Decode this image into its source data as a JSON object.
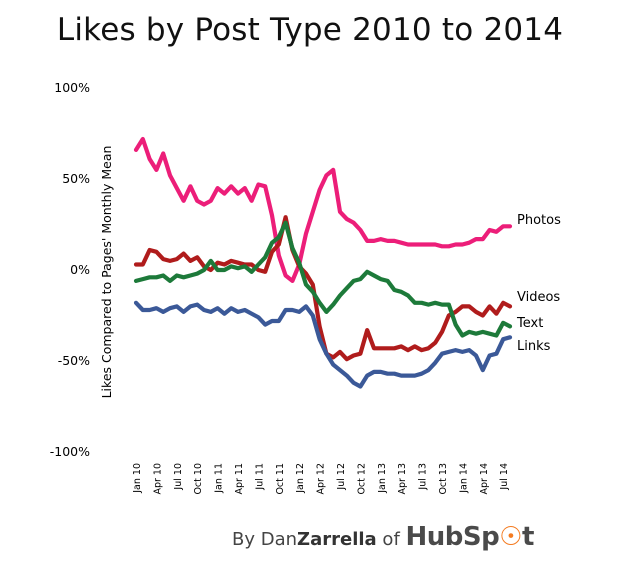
{
  "chart_data": {
    "type": "line",
    "title": "Likes by Post Type 2010 to 2014",
    "xlabel": "",
    "ylabel": "Likes Compared to Pages' Monthly Mean",
    "ylim": [
      -100,
      100
    ],
    "y_ticks": [
      100,
      50,
      0,
      -50,
      -100
    ],
    "y_tick_labels": [
      "100%",
      "50%",
      "0%",
      "-50%",
      "-100%"
    ],
    "categories": [
      "Jan 10",
      "Feb 10",
      "Mar 10",
      "Apr 10",
      "May 10",
      "Jun 10",
      "Jul 10",
      "Aug 10",
      "Sep 10",
      "Oct 10",
      "Nov 10",
      "Dec 10",
      "Jan 11",
      "Feb 11",
      "Mar 11",
      "Apr 11",
      "May 11",
      "Jun 11",
      "Jul 11",
      "Aug 11",
      "Sep 11",
      "Oct 11",
      "Nov 11",
      "Dec 11",
      "Jan 12",
      "Feb 12",
      "Mar 12",
      "Apr 12",
      "May 12",
      "Jun 12",
      "Jul 12",
      "Aug 12",
      "Sep 12",
      "Oct 12",
      "Nov 12",
      "Dec 12",
      "Jan 13",
      "Feb 13",
      "Mar 13",
      "Apr 13",
      "May 13",
      "Jun 13",
      "Jul 13",
      "Aug 13",
      "Sep 13",
      "Oct 13",
      "Nov 13",
      "Dec 13",
      "Jan 14",
      "Feb 14",
      "Mar 14",
      "Apr 14",
      "May 14",
      "Jun 14",
      "Jul 14",
      "Aug 14"
    ],
    "x_tick_labels": [
      "Jan 10",
      "Apr 10",
      "Jul 10",
      "Oct 10",
      "Jan 11",
      "Apr 11",
      "Jul 11",
      "Oct 11",
      "Jan 12",
      "Apr 12",
      "Jul 12",
      "Oct 12",
      "Jan 13",
      "Apr 13",
      "Jul 13",
      "Oct 13",
      "Jan 14",
      "Apr 14",
      "Jul 14"
    ],
    "series": [
      {
        "name": "Photos",
        "color": "#ec1e79",
        "values": [
          66,
          72,
          61,
          55,
          64,
          52,
          45,
          38,
          46,
          38,
          36,
          38,
          45,
          42,
          46,
          42,
          45,
          38,
          47,
          46,
          30,
          8,
          -3,
          -6,
          3,
          20,
          32,
          44,
          52,
          55,
          32,
          28,
          26,
          22,
          16,
          16,
          17,
          16,
          16,
          15,
          14,
          14,
          14,
          14,
          14,
          13,
          13,
          14,
          14,
          15,
          17,
          17,
          22,
          21,
          24,
          24
        ]
      },
      {
        "name": "Videos",
        "color": "#b01c1c",
        "values": [
          3,
          3,
          11,
          10,
          6,
          5,
          6,
          9,
          5,
          7,
          2,
          0,
          4,
          3,
          5,
          4,
          3,
          3,
          0,
          -1,
          10,
          14,
          29,
          11,
          2,
          -2,
          -8,
          -31,
          -46,
          -48,
          -45,
          -49,
          -47,
          -46,
          -33,
          -43,
          -43,
          -43,
          -43,
          -42,
          -44,
          -42,
          -44,
          -43,
          -40,
          -34,
          -25,
          -23,
          -20,
          -20,
          -23,
          -25,
          -20,
          -24,
          -18,
          -20
        ]
      },
      {
        "name": "Text",
        "color": "#1d7a3a",
        "values": [
          -6,
          -5,
          -4,
          -4,
          -3,
          -6,
          -3,
          -4,
          -3,
          -2,
          0,
          5,
          0,
          0,
          2,
          1,
          2,
          -1,
          3,
          7,
          15,
          18,
          26,
          12,
          4,
          -8,
          -12,
          -18,
          -23,
          -19,
          -14,
          -10,
          -6,
          -5,
          -1,
          -3,
          -5,
          -6,
          -11,
          -12,
          -14,
          -18,
          -18,
          -19,
          -18,
          -19,
          -19,
          -30,
          -36,
          -34,
          -35,
          -34,
          -35,
          -36,
          -29,
          -31
        ]
      },
      {
        "name": "Links",
        "color": "#3b5998",
        "values": [
          -18,
          -22,
          -22,
          -21,
          -23,
          -21,
          -20,
          -23,
          -20,
          -19,
          -22,
          -23,
          -21,
          -24,
          -21,
          -23,
          -22,
          -24,
          -26,
          -30,
          -28,
          -28,
          -22,
          -22,
          -23,
          -20,
          -25,
          -38,
          -46,
          -52,
          -55,
          -58,
          -62,
          -64,
          -58,
          -56,
          -56,
          -57,
          -57,
          -58,
          -58,
          -58,
          -57,
          -55,
          -51,
          -46,
          -45,
          -44,
          -45,
          -44,
          -47,
          -55,
          -47,
          -46,
          -38,
          -37
        ]
      }
    ]
  },
  "credit": {
    "by": "By ",
    "author_first": "Dan",
    "author_last": "Zarrella",
    "of": " of ",
    "brand_a": "Hub",
    "brand_b": "Sp",
    "brand_c": "t"
  },
  "colors": {
    "brand_accent": "#f47b20"
  }
}
